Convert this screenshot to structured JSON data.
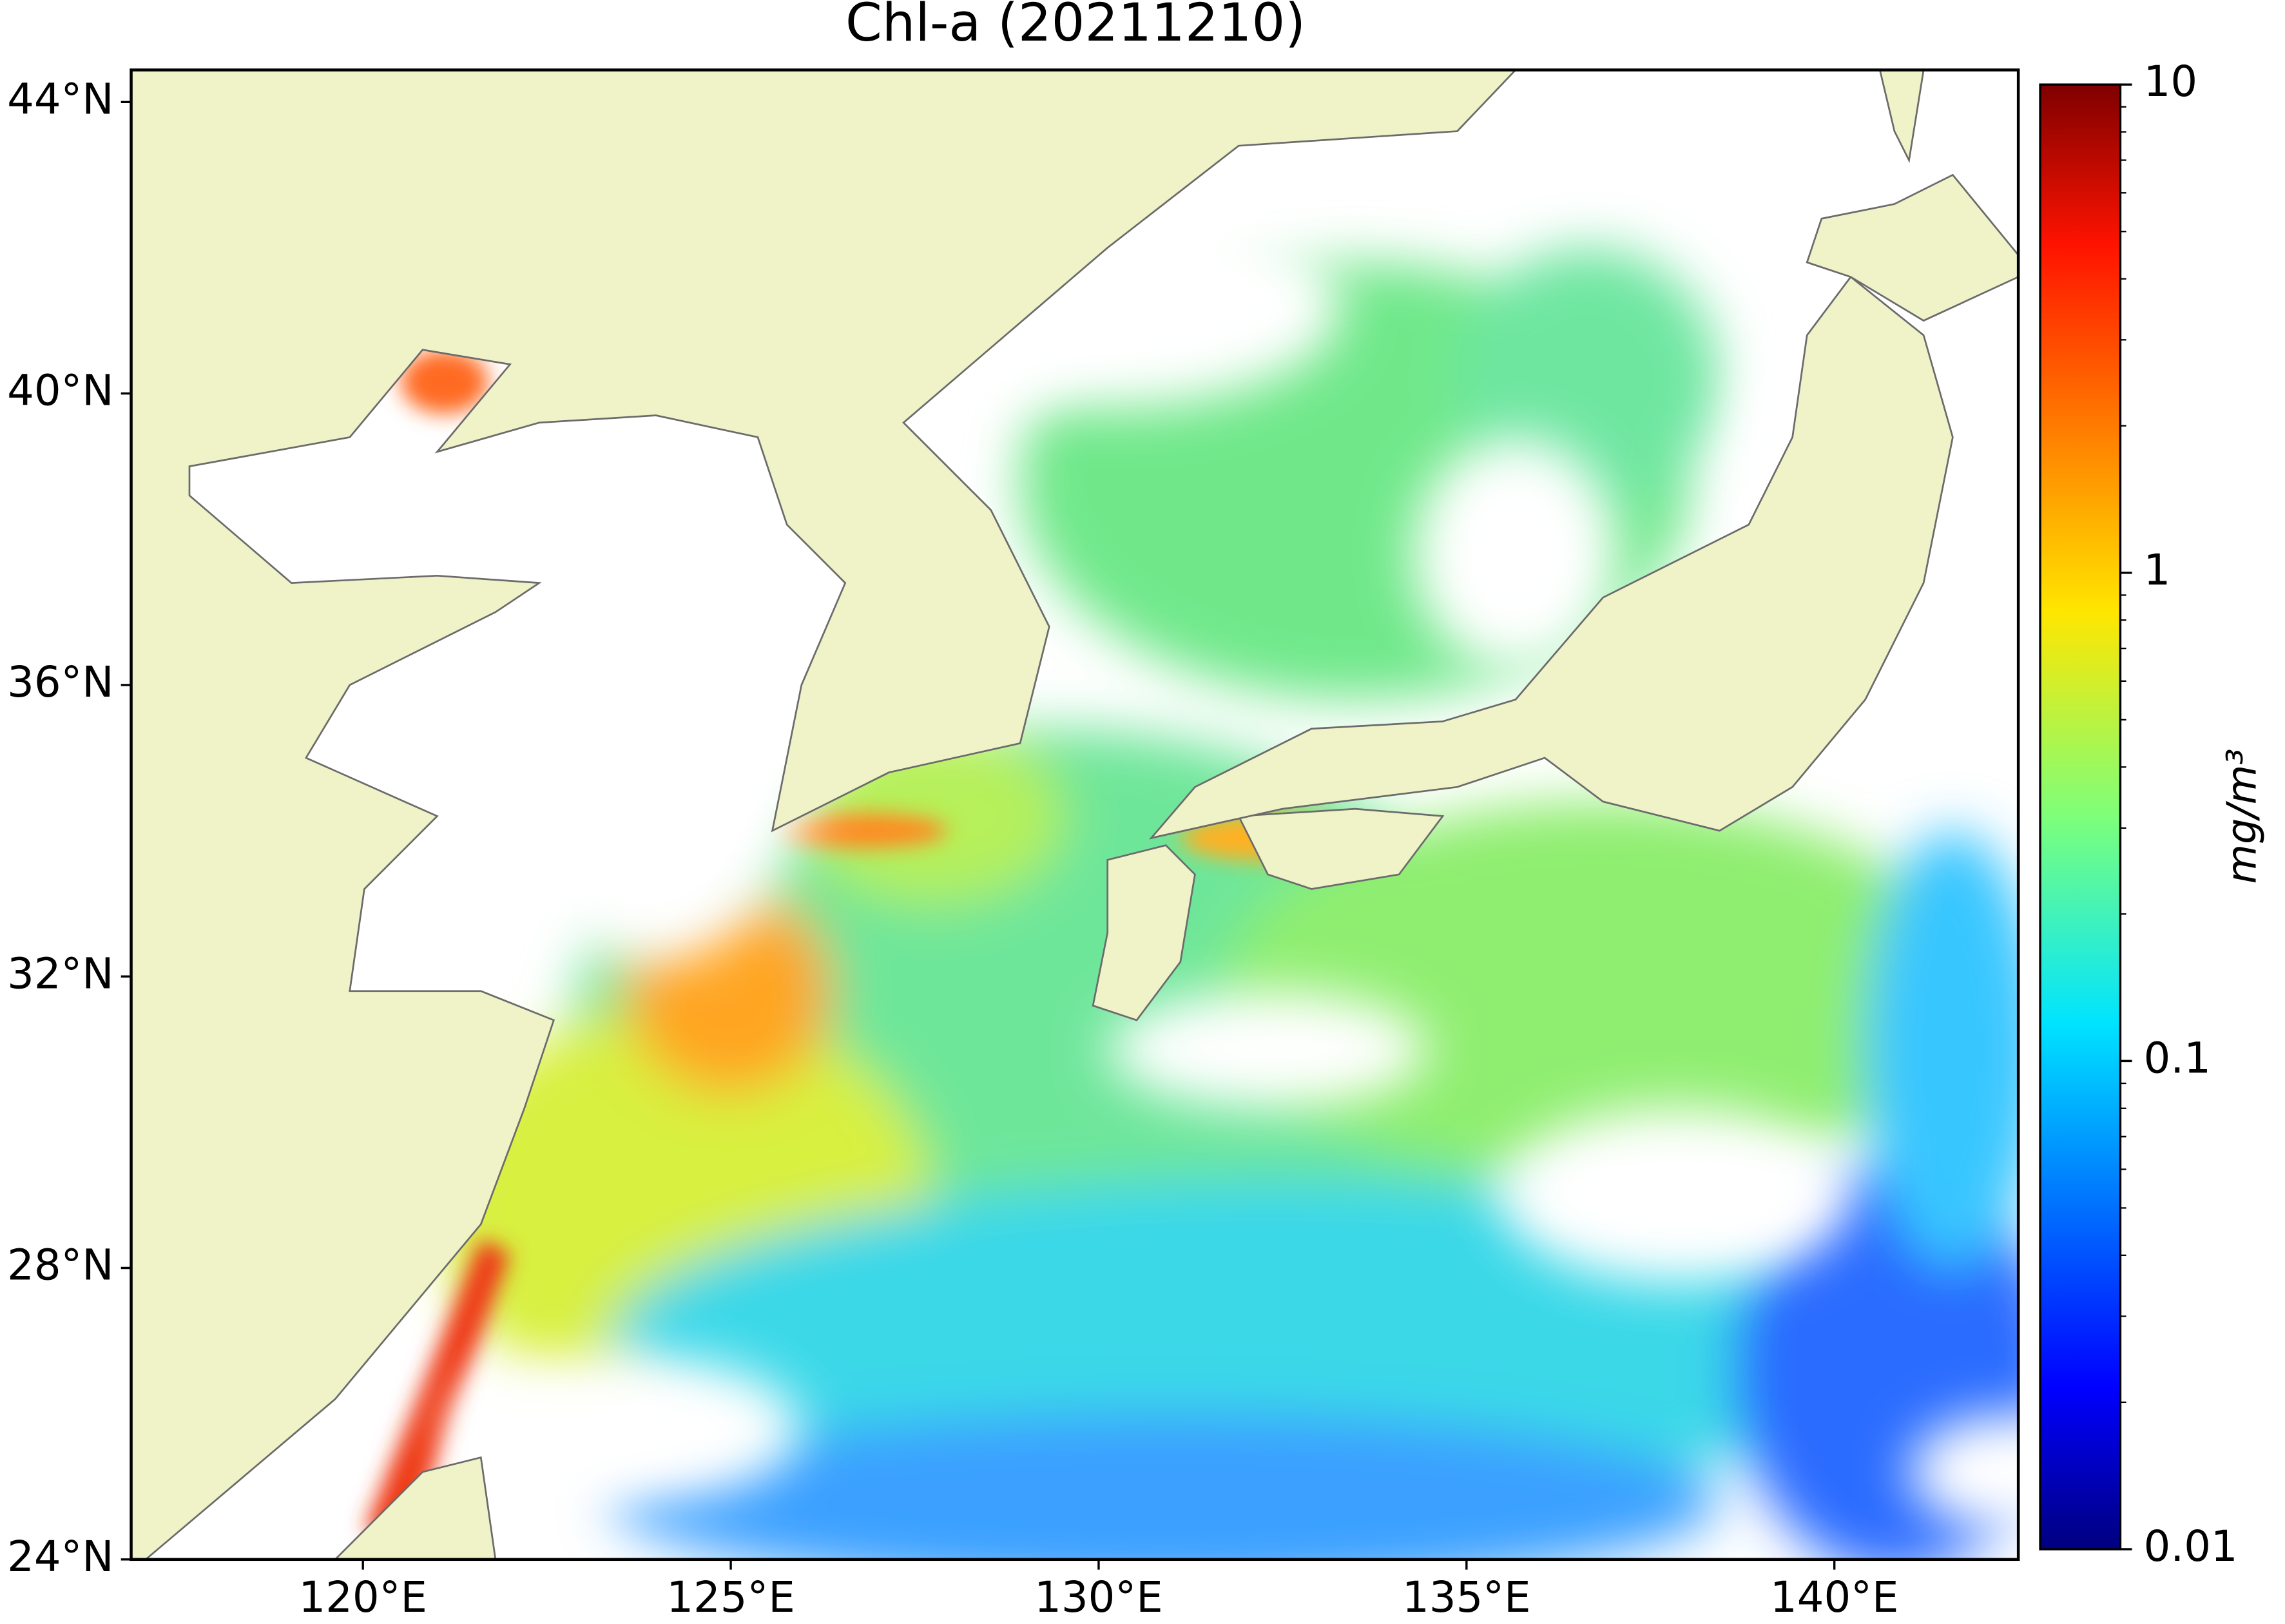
{
  "map": {
    "title": "Chl-a (20211210)",
    "xlim": [
      116.85,
      142.5
    ],
    "ylim": [
      24,
      44.44
    ],
    "xticks": [
      {
        "value": 120,
        "label": "120°E"
      },
      {
        "value": 125,
        "label": "125°E"
      },
      {
        "value": 130,
        "label": "130°E"
      },
      {
        "value": 135,
        "label": "135°E"
      },
      {
        "value": 140,
        "label": "140°E"
      }
    ],
    "yticks": [
      {
        "value": 24,
        "label": "24°N"
      },
      {
        "value": 28,
        "label": "28°N"
      },
      {
        "value": 32,
        "label": "32°N"
      },
      {
        "value": 36,
        "label": "36°N"
      },
      {
        "value": 40,
        "label": "40°N"
      },
      {
        "value": 44,
        "label": "44°N"
      }
    ],
    "colorbar": {
      "label": "mg/m³",
      "lim": [
        0.01,
        10
      ],
      "ticks": [
        0.01,
        0.1,
        1,
        10
      ],
      "log_scale": true
    }
  }
}
